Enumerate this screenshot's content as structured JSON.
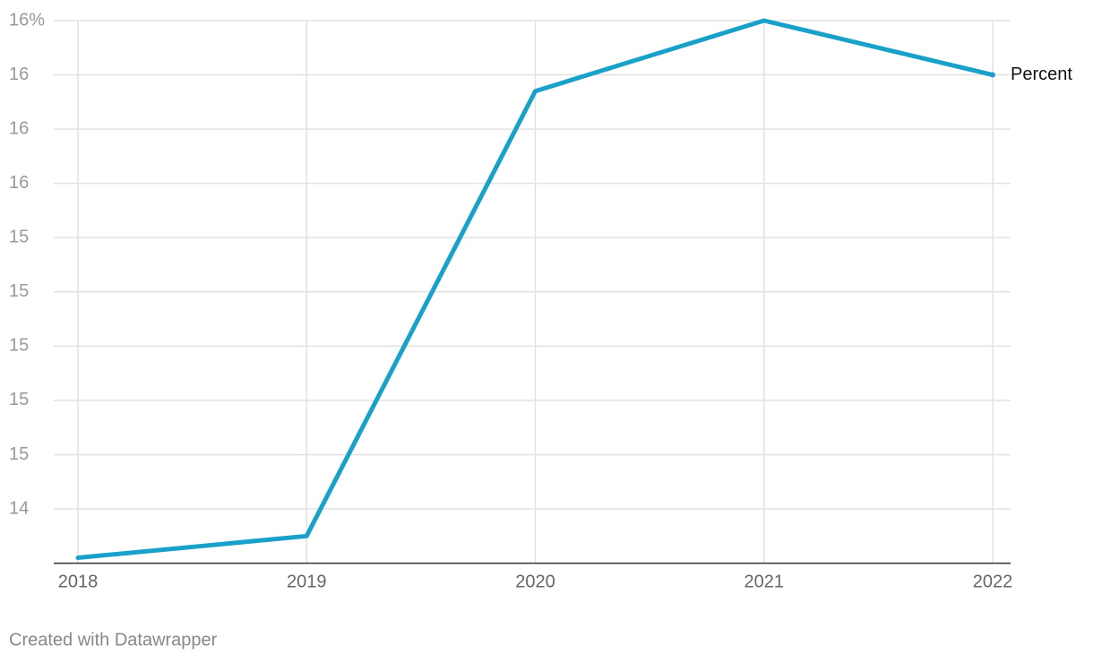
{
  "chart_data": {
    "type": "line",
    "x": [
      "2018",
      "2019",
      "2020",
      "2021",
      "2022"
    ],
    "series": [
      {
        "name": "Percent",
        "color": "#1aa1c9",
        "values": [
          14.22,
          14.3,
          15.94,
          16.2,
          16.0
        ]
      }
    ],
    "ylim": [
      14.2,
      16.2
    ],
    "yticks": [
      {
        "value": 14.4,
        "label": "14"
      },
      {
        "value": 14.6,
        "label": "15"
      },
      {
        "value": 14.8,
        "label": "15"
      },
      {
        "value": 15.0,
        "label": "15"
      },
      {
        "value": 15.2,
        "label": "15"
      },
      {
        "value": 15.4,
        "label": "15"
      },
      {
        "value": 15.6,
        "label": "16"
      },
      {
        "value": 15.8,
        "label": "16"
      },
      {
        "value": 16.0,
        "label": "16"
      },
      {
        "value": 16.2,
        "label": "16%"
      }
    ],
    "grid": true,
    "footer": "Created with Datawrapper"
  }
}
